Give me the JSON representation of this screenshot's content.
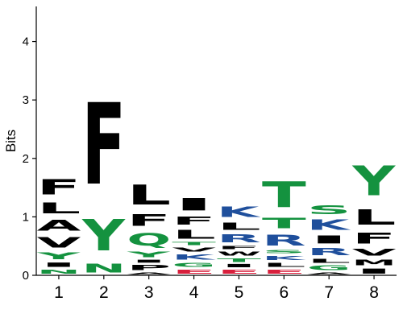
{
  "chart_data": {
    "type": "sequence-logo",
    "title": "",
    "xlabel": "",
    "ylabel": "Bits",
    "ylim": [
      0,
      4.6
    ],
    "yticks": [
      "0",
      "1",
      "2",
      "3",
      "4"
    ],
    "ytick_values": [
      0,
      1,
      2,
      3,
      4
    ],
    "categories": [
      "1",
      "2",
      "3",
      "4",
      "5",
      "6",
      "7",
      "8"
    ],
    "colors": {
      "F": "#000000",
      "L": "#000000",
      "I": "#000000",
      "M": "#000000",
      "V": "#000000",
      "W": "#000000",
      "A": "#000000",
      "P": "#000000",
      "Y": "#14923f",
      "N": "#14923f",
      "Q": "#14923f",
      "T": "#14923f",
      "G": "#14923f",
      "S": "#14923f",
      "K": "#1f4f9c",
      "R": "#1f4f9c",
      "H": "#1f4f9c",
      "D": "#d81f3c",
      "E": "#d81f3c",
      "C": "#9c1f72"
    },
    "positions": [
      {
        "label": "1",
        "stack": [
          {
            "letter": "N",
            "height": 0.12
          },
          {
            "letter": "I",
            "height": 0.12
          },
          {
            "letter": "Y",
            "height": 0.18
          },
          {
            "letter": "V",
            "height": 0.28
          },
          {
            "letter": "A",
            "height": 0.3
          },
          {
            "letter": "L",
            "height": 0.3
          },
          {
            "letter": "F",
            "height": 0.41
          }
        ]
      },
      {
        "label": "2",
        "stack": [
          {
            "letter": "N",
            "height": 0.25
          },
          {
            "letter": "Y",
            "height": 0.86
          },
          {
            "letter": "F",
            "height": 2.24
          }
        ]
      },
      {
        "label": "3",
        "stack": [
          {
            "letter": "A",
            "height": 0.06
          },
          {
            "letter": "P",
            "height": 0.14
          },
          {
            "letter": "I",
            "height": 0.08
          },
          {
            "letter": "Y",
            "height": 0.16
          },
          {
            "letter": "Q",
            "height": 0.34
          },
          {
            "letter": "F",
            "height": 0.32
          },
          {
            "letter": "L",
            "height": 0.55
          }
        ]
      },
      {
        "label": "4",
        "stack": [
          {
            "letter": "E",
            "height": 0.12
          },
          {
            "letter": "G",
            "height": 0.12
          },
          {
            "letter": "K",
            "height": 0.14
          },
          {
            "letter": "V",
            "height": 0.12
          },
          {
            "letter": "T",
            "height": 0.08
          },
          {
            "letter": "L",
            "height": 0.24
          },
          {
            "letter": "F",
            "height": 0.22
          },
          {
            "letter": "I",
            "height": 0.34
          }
        ]
      },
      {
        "label": "5",
        "stack": [
          {
            "letter": "E",
            "height": 0.12
          },
          {
            "letter": "I",
            "height": 0.09
          },
          {
            "letter": "T",
            "height": 0.1
          },
          {
            "letter": "W",
            "height": 0.12
          },
          {
            "letter": "F",
            "height": 0.09
          },
          {
            "letter": "R",
            "height": 0.22
          },
          {
            "letter": "L",
            "height": 0.2
          },
          {
            "letter": "K",
            "height": 0.28
          }
        ]
      },
      {
        "label": "6",
        "stack": [
          {
            "letter": "E",
            "height": 0.12
          },
          {
            "letter": "L",
            "height": 0.12
          },
          {
            "letter": "K",
            "height": 0.12
          },
          {
            "letter": "S",
            "height": 0.09
          },
          {
            "letter": "R",
            "height": 0.3
          },
          {
            "letter": "T",
            "height": 0.28
          },
          {
            "letter": "T",
            "height": 0.7
          }
        ]
      },
      {
        "label": "7",
        "stack": [
          {
            "letter": "A",
            "height": 0.06
          },
          {
            "letter": "G",
            "height": 0.13
          },
          {
            "letter": "L",
            "height": 0.11
          },
          {
            "letter": "R",
            "height": 0.2
          },
          {
            "letter": "I",
            "height": 0.22
          },
          {
            "letter": "K",
            "height": 0.28
          },
          {
            "letter": "S",
            "height": 0.24
          }
        ]
      },
      {
        "label": "8",
        "stack": [
          {
            "letter": "I",
            "height": 0.14
          },
          {
            "letter": "M",
            "height": 0.16
          },
          {
            "letter": "V",
            "height": 0.18
          },
          {
            "letter": "F",
            "height": 0.3
          },
          {
            "letter": "L",
            "height": 0.42
          },
          {
            "letter": "Y",
            "height": 0.82
          }
        ]
      }
    ]
  }
}
